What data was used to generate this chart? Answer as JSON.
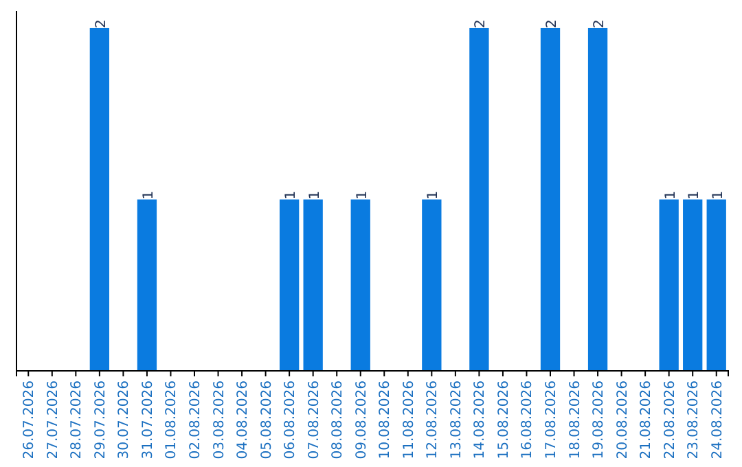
{
  "chart_data": {
    "type": "bar",
    "categories": [
      "26.07.2026",
      "27.07.2026",
      "28.07.2026",
      "29.07.2026",
      "30.07.2026",
      "31.07.2026",
      "01.08.2026",
      "02.08.2026",
      "03.08.2026",
      "04.08.2026",
      "05.08.2026",
      "06.08.2026",
      "07.08.2026",
      "08.08.2026",
      "09.08.2026",
      "10.08.2026",
      "11.08.2026",
      "12.08.2026",
      "13.08.2026",
      "14.08.2026",
      "15.08.2026",
      "16.08.2026",
      "17.08.2026",
      "18.08.2026",
      "19.08.2026",
      "20.08.2026",
      "21.08.2026",
      "22.08.2026",
      "23.08.2026",
      "24.08.2026"
    ],
    "values": [
      0,
      0,
      0,
      2,
      0,
      1,
      0,
      0,
      0,
      0,
      0,
      1,
      1,
      0,
      1,
      0,
      0,
      1,
      0,
      2,
      0,
      0,
      2,
      0,
      2,
      0,
      0,
      1,
      1,
      1
    ],
    "value_labels": [
      null,
      null,
      null,
      "2",
      null,
      "1",
      null,
      null,
      null,
      null,
      null,
      "1",
      "1",
      null,
      "1",
      null,
      null,
      "1",
      null,
      "2",
      null,
      null,
      "2",
      null,
      "2",
      null,
      null,
      "1",
      "1",
      "1"
    ],
    "color": "#0a7be0",
    "ylim": [
      0,
      2.1
    ],
    "tick_labels": "x",
    "grid": false
  }
}
